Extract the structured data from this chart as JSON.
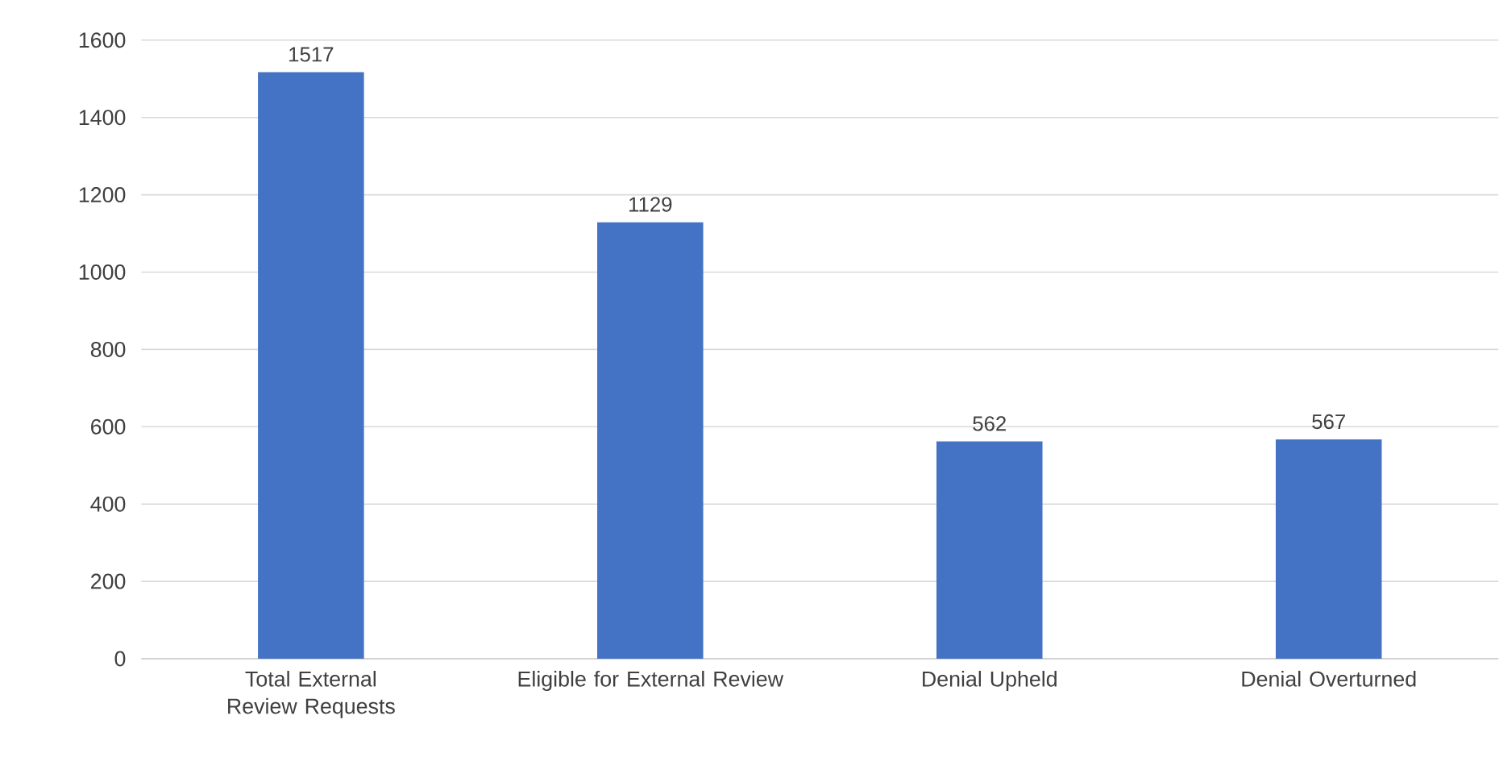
{
  "chart_data": {
    "type": "bar",
    "categories": [
      "Total External Review Requests",
      "Eligible for External Review",
      "Denial Upheld",
      "Denial Overturned"
    ],
    "values": [
      1517,
      1129,
      562,
      567
    ],
    "color": "#4472c4",
    "ylim": [
      0,
      1600
    ],
    "yticks": [
      0,
      200,
      400,
      600,
      800,
      1000,
      1200,
      1400,
      1600
    ],
    "grid": "y",
    "data_labels": true
  }
}
